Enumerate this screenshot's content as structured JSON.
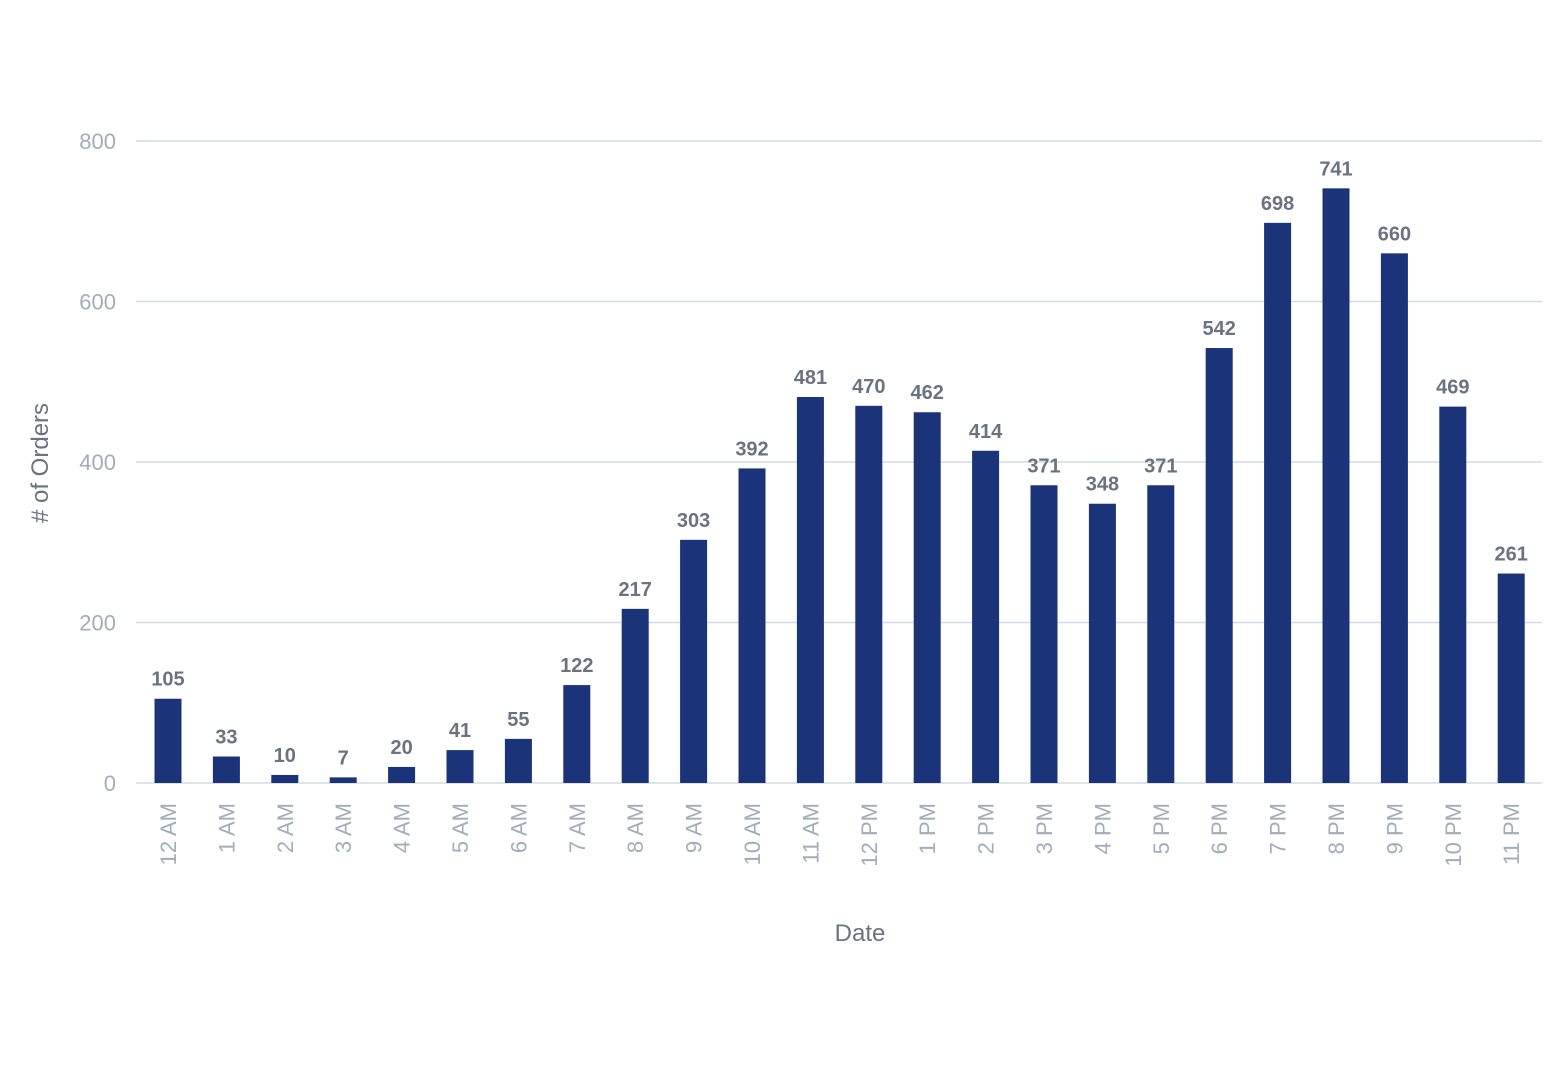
{
  "chart_data": {
    "type": "bar",
    "title": "",
    "xlabel": "Date",
    "ylabel": "# of Orders",
    "ylim": [
      0,
      800
    ],
    "yticks": [
      0,
      200,
      400,
      600,
      800
    ],
    "grid": true,
    "legend": "none",
    "bar_color": "#1b3378",
    "categories": [
      "12 AM",
      "1 AM",
      "2 AM",
      "3 AM",
      "4 AM",
      "5 AM",
      "6 AM",
      "7 AM",
      "8 AM",
      "9 AM",
      "10 AM",
      "11 AM",
      "12 PM",
      "1 PM",
      "2 PM",
      "3 PM",
      "4 PM",
      "5 PM",
      "6 PM",
      "7 PM",
      "8 PM",
      "9 PM",
      "10 PM",
      "11 PM"
    ],
    "values": [
      105,
      33,
      10,
      7,
      20,
      41,
      55,
      122,
      217,
      303,
      392,
      481,
      470,
      462,
      414,
      371,
      348,
      371,
      542,
      698,
      741,
      660,
      469,
      261
    ]
  }
}
